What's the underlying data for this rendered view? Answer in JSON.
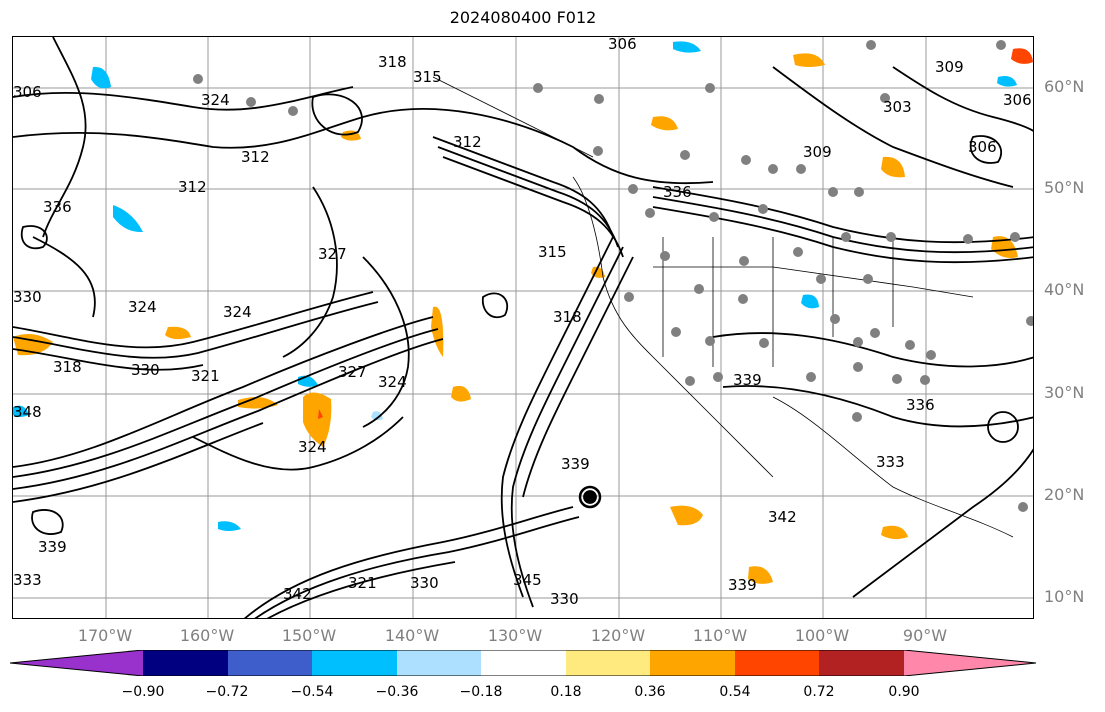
{
  "title": "2024080400 F012",
  "map": {
    "lat_ticks": [
      "60°N",
      "50°N",
      "40°N",
      "30°N",
      "20°N",
      "10°N"
    ],
    "lon_ticks": [
      "170°W",
      "160°W",
      "150°W",
      "140°W",
      "130°W",
      "120°W",
      "110°W",
      "100°W",
      "90°W"
    ],
    "contour_labels": [
      "306",
      "318",
      "315",
      "309",
      "324",
      "312",
      "303",
      "336",
      "330",
      "327",
      "321",
      "339",
      "342",
      "345",
      "333",
      "348"
    ],
    "station_marker_color": "#808080",
    "contour_color": "#000000"
  },
  "colorbar": {
    "ticks": [
      "−0.90",
      "−0.72",
      "−0.54",
      "−0.36",
      "−0.18",
      "0.18",
      "0.36",
      "0.54",
      "0.72",
      "0.90"
    ],
    "colors": [
      "#9932CC",
      "#000080",
      "#3E5FCB",
      "#00BFFF",
      "#ADDFFF",
      "#FFFFFF",
      "#FFEA80",
      "#FFA500",
      "#FF4500",
      "#B22222",
      "#FF88AA"
    ]
  }
}
